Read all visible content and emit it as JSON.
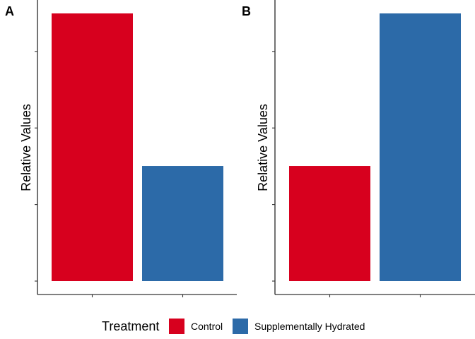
{
  "chart_data": [
    {
      "type": "bar",
      "panel_label": "A",
      "categories": [
        "",
        ""
      ],
      "series": [
        {
          "name": "Control",
          "color": "#d7001e",
          "values": [
            1.0,
            null
          ]
        },
        {
          "name": "Supplementally Hydrated",
          "color": "#2c6aa8",
          "values": [
            null,
            0.43
          ]
        }
      ],
      "values": [
        1.0,
        0.43
      ],
      "ylabel": "Relative Values",
      "xlabel": "",
      "ylim": [
        -0.05,
        1.05
      ],
      "yticks": [
        0,
        0.286,
        0.572,
        0.858
      ],
      "grid": false
    },
    {
      "type": "bar",
      "panel_label": "B",
      "categories": [
        "",
        ""
      ],
      "series": [
        {
          "name": "Control",
          "color": "#d7001e",
          "values": [
            0.43,
            null
          ]
        },
        {
          "name": "Supplementally Hydrated",
          "color": "#2c6aa8",
          "values": [
            null,
            1.0
          ]
        }
      ],
      "values": [
        0.43,
        1.0
      ],
      "ylabel": "Relative Values",
      "xlabel": "",
      "ylim": [
        -0.05,
        1.05
      ],
      "yticks": [
        0,
        0.286,
        0.572,
        0.858
      ],
      "grid": false
    }
  ],
  "legend": {
    "title": "Treatment",
    "placement": "bottom",
    "items": [
      {
        "label": "Control",
        "color": "#d7001e"
      },
      {
        "label": "Supplementally Hydrated",
        "color": "#2c6aa8"
      }
    ]
  }
}
